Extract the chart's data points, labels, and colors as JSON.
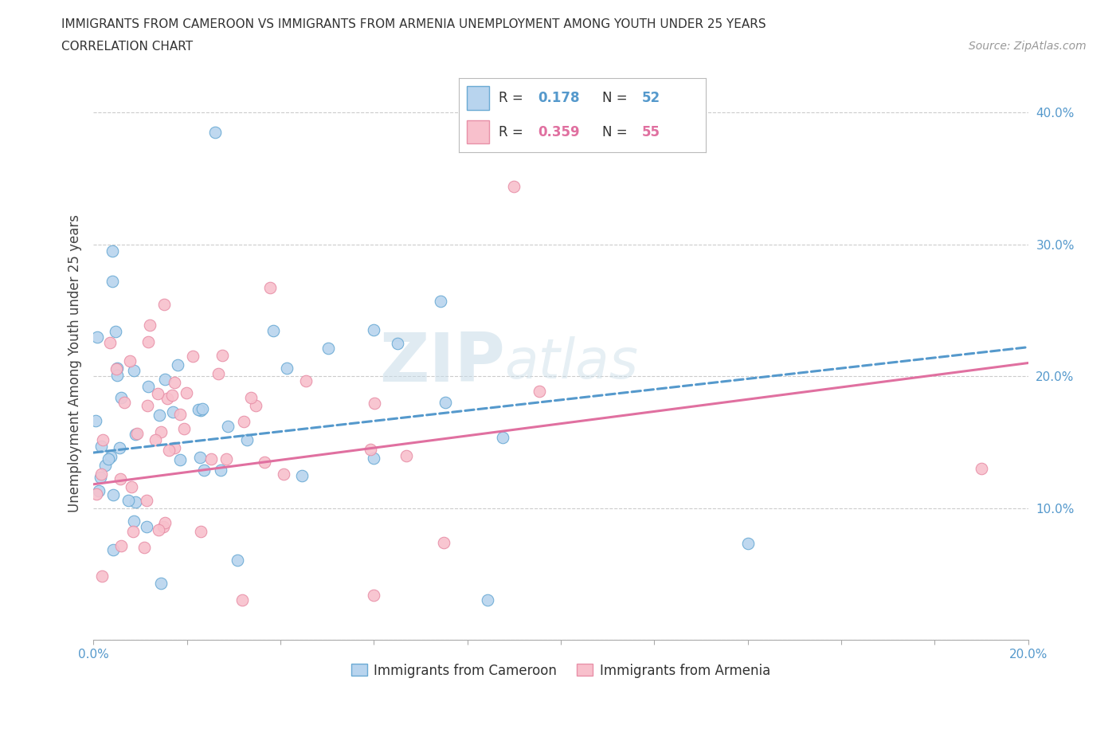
{
  "title_line1": "IMMIGRANTS FROM CAMEROON VS IMMIGRANTS FROM ARMENIA UNEMPLOYMENT AMONG YOUTH UNDER 25 YEARS",
  "title_line2": "CORRELATION CHART",
  "source_text": "Source: ZipAtlas.com",
  "ylabel": "Unemployment Among Youth under 25 years",
  "xlim": [
    0.0,
    0.2
  ],
  "ylim": [
    0.0,
    0.42
  ],
  "xticks": [
    0.0,
    0.02,
    0.04,
    0.06,
    0.08,
    0.1,
    0.12,
    0.14,
    0.16,
    0.18,
    0.2
  ],
  "yticks": [
    0.0,
    0.1,
    0.2,
    0.3,
    0.4
  ],
  "xtick_labels_show": [
    "0.0%",
    "",
    "",
    "",
    "",
    "",
    "",
    "",
    "",
    "",
    "20.0%"
  ],
  "ytick_labels": [
    "",
    "10.0%",
    "20.0%",
    "30.0%",
    "40.0%"
  ],
  "r1": 0.178,
  "n1": 52,
  "r2": 0.359,
  "n2": 55,
  "color_cameroon_face": "#b8d4ee",
  "color_cameroon_edge": "#6aaad4",
  "color_armenia_face": "#f8c0cc",
  "color_armenia_edge": "#e890a8",
  "color_line_cameroon": "#5599cc",
  "color_line_armenia": "#e070a0",
  "watermark_color": "#c8dce8",
  "background_color": "#ffffff",
  "grid_color": "#cccccc",
  "tick_label_color": "#5599cc"
}
